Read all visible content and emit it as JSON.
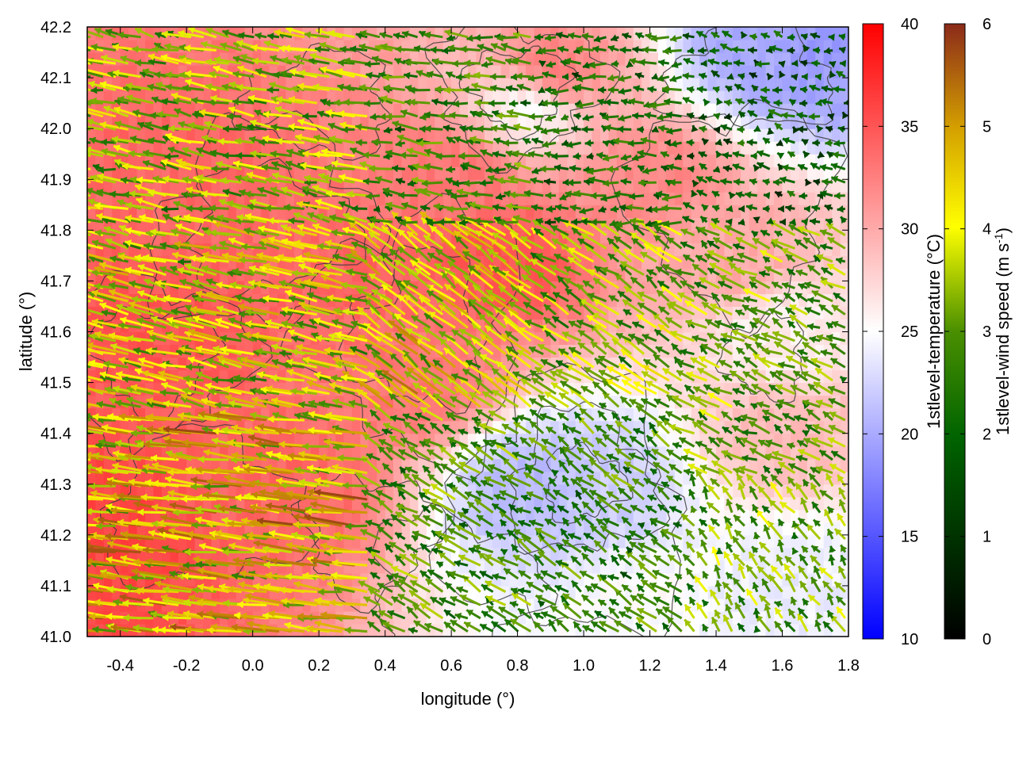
{
  "chart_data": {
    "type": "heatmap",
    "overlays": [
      "vector-field",
      "contour"
    ],
    "xlabel": "longitude (°)",
    "ylabel": "latitude (°)",
    "xlim": [
      -0.5,
      1.8
    ],
    "ylim": [
      41.0,
      42.2
    ],
    "x_ticks": [
      -0.4,
      -0.2,
      0.0,
      0.2,
      0.4,
      0.6,
      0.8,
      1.0,
      1.2,
      1.4,
      1.6,
      1.8
    ],
    "x_tick_labels": [
      "-0.4",
      "-0.2",
      "0.0",
      "0.2",
      "0.4",
      "0.6",
      "0.8",
      "1.0",
      "1.2",
      "1.4",
      "1.6",
      "1.8"
    ],
    "y_ticks": [
      41.0,
      41.1,
      41.2,
      41.3,
      41.4,
      41.5,
      41.6,
      41.7,
      41.8,
      41.9,
      42.0,
      42.1,
      42.2
    ],
    "y_tick_labels": [
      "41.0",
      "41.1",
      "41.2",
      "41.3",
      "41.4",
      "41.5",
      "41.6",
      "41.7",
      "41.8",
      "41.9",
      "42.0",
      "42.1",
      "42.2"
    ],
    "colorbars": [
      {
        "label": "1stlevel-temperature (°C)",
        "range": [
          10,
          40
        ],
        "ticks": [
          10,
          15,
          20,
          25,
          30,
          35,
          40
        ],
        "colors": [
          "#0000ff",
          "#ffffff",
          "#ff0000"
        ]
      },
      {
        "label_main": "1stlevel-wind speed (m s",
        "label_sup": "-1",
        "label_end": ")",
        "range": [
          0,
          6
        ],
        "ticks": [
          0,
          1,
          2,
          3,
          4,
          5,
          6
        ],
        "colors": [
          "#000000",
          "#006400",
          "#4a8f00",
          "#ffff00",
          "#d4a000",
          "#8b2a1a"
        ]
      }
    ],
    "temperature_field": [
      {
        "lon": -0.45,
        "lat": 41.2,
        "temp": 36
      },
      {
        "lon": -0.3,
        "lat": 41.6,
        "temp": 35
      },
      {
        "lon": -0.2,
        "lat": 41.9,
        "temp": 34
      },
      {
        "lon": 0.1,
        "lat": 41.3,
        "temp": 34
      },
      {
        "lon": 0.3,
        "lat": 41.7,
        "temp": 34
      },
      {
        "lon": 0.5,
        "lat": 41.5,
        "temp": 33
      },
      {
        "lon": 0.6,
        "lat": 41.9,
        "temp": 33
      },
      {
        "lon": 0.75,
        "lat": 41.75,
        "temp": 35
      },
      {
        "lon": 0.9,
        "lat": 42.1,
        "temp": 33
      },
      {
        "lon": 1.2,
        "lat": 41.9,
        "temp": 32
      },
      {
        "lon": 1.45,
        "lat": 41.75,
        "temp": 30
      },
      {
        "lon": 1.6,
        "lat": 41.4,
        "temp": 29
      },
      {
        "lon": 1.05,
        "lat": 41.3,
        "temp": 22
      },
      {
        "lon": 0.85,
        "lat": 41.3,
        "temp": 21
      },
      {
        "lon": 1.55,
        "lat": 42.15,
        "temp": 20
      },
      {
        "lon": 1.72,
        "lat": 42.15,
        "temp": 19
      },
      {
        "lon": 1.55,
        "lat": 41.05,
        "temp": 24
      },
      {
        "lon": 1.7,
        "lat": 41.1,
        "temp": 24
      },
      {
        "lon": 1.2,
        "lat": 41.05,
        "temp": 25
      },
      {
        "lon": 0.85,
        "lat": 42.05,
        "temp": 25
      },
      {
        "lon": 1.6,
        "lat": 41.6,
        "temp": 26
      }
    ],
    "wind_regions": [
      {
        "lon_range": [
          -0.5,
          0.35
        ],
        "lat_range": [
          41.0,
          41.45
        ],
        "u": -4.5,
        "v": 0.6,
        "speed": 4.0
      },
      {
        "lon_range": [
          -0.5,
          0.35
        ],
        "lat_range": [
          41.45,
          41.8
        ],
        "u": -3.5,
        "v": 0.8,
        "speed": 3.3
      },
      {
        "lon_range": [
          -0.5,
          0.35
        ],
        "lat_range": [
          41.8,
          42.2
        ],
        "u": -3.0,
        "v": 0.6,
        "speed": 2.8
      },
      {
        "lon_range": [
          0.35,
          0.85
        ],
        "lat_range": [
          41.0,
          41.45
        ],
        "u": -2.0,
        "v": 1.2,
        "speed": 2.2
      },
      {
        "lon_range": [
          0.35,
          0.85
        ],
        "lat_range": [
          41.45,
          41.8
        ],
        "u": -3.0,
        "v": 2.2,
        "speed": 3.6
      },
      {
        "lon_range": [
          0.35,
          0.85
        ],
        "lat_range": [
          41.8,
          42.2
        ],
        "u": -2.0,
        "v": 0.3,
        "speed": 2.0
      },
      {
        "lon_range": [
          0.85,
          1.3
        ],
        "lat_range": [
          41.0,
          41.45
        ],
        "u": -1.6,
        "v": 1.2,
        "speed": 2.0
      },
      {
        "lon_range": [
          0.85,
          1.3
        ],
        "lat_range": [
          41.45,
          41.8
        ],
        "u": -2.4,
        "v": 1.6,
        "speed": 2.8
      },
      {
        "lon_range": [
          0.85,
          1.3
        ],
        "lat_range": [
          41.8,
          42.2
        ],
        "u": -1.5,
        "v": 0.0,
        "speed": 1.6
      },
      {
        "lon_range": [
          1.3,
          1.8
        ],
        "lat_range": [
          41.0,
          41.3
        ],
        "u": -1.0,
        "v": 1.4,
        "speed": 2.5
      },
      {
        "lon_range": [
          1.3,
          1.8
        ],
        "lat_range": [
          41.3,
          41.8
        ],
        "u": -2.0,
        "v": 1.0,
        "speed": 2.4
      },
      {
        "lon_range": [
          1.3,
          1.8
        ],
        "lat_range": [
          41.8,
          42.2
        ],
        "u": -1.0,
        "v": 0.3,
        "speed": 1.2
      }
    ]
  }
}
